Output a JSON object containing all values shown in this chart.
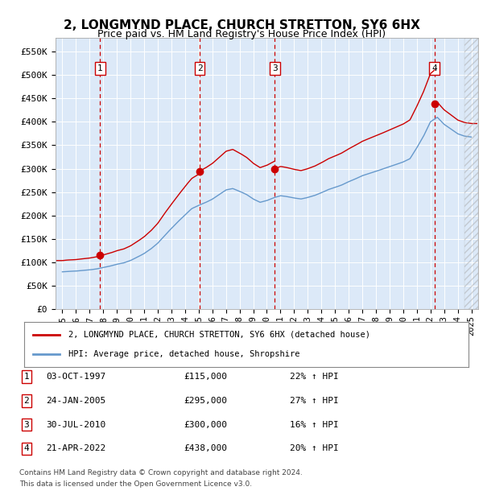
{
  "title": "2, LONGMYND PLACE, CHURCH STRETTON, SY6 6HX",
  "subtitle": "Price paid vs. HM Land Registry's House Price Index (HPI)",
  "legend_label_red": "2, LONGMYND PLACE, CHURCH STRETTON, SY6 6HX (detached house)",
  "legend_label_blue": "HPI: Average price, detached house, Shropshire",
  "footer1": "Contains HM Land Registry data © Crown copyright and database right 2024.",
  "footer2": "This data is licensed under the Open Government Licence v3.0.",
  "sales": [
    {
      "num": 1,
      "date": "03-OCT-1997",
      "price": 115000,
      "pct": "22%",
      "x_year": 1997.75
    },
    {
      "num": 2,
      "date": "24-JAN-2005",
      "price": 295000,
      "pct": "27%",
      "x_year": 2005.07
    },
    {
      "num": 3,
      "date": "30-JUL-2010",
      "price": 300000,
      "pct": "16%",
      "x_year": 2010.58
    },
    {
      "num": 4,
      "date": "21-APR-2022",
      "price": 438000,
      "pct": "20%",
      "x_year": 2022.31
    }
  ],
  "ylim": [
    0,
    580000
  ],
  "xlim": [
    1994.5,
    2025.5
  ],
  "yticks": [
    0,
    50000,
    100000,
    150000,
    200000,
    250000,
    300000,
    350000,
    400000,
    450000,
    500000,
    550000
  ],
  "ytick_labels": [
    "£0",
    "£50K",
    "£100K",
    "£150K",
    "£200K",
    "£250K",
    "£300K",
    "£350K",
    "£400K",
    "£450K",
    "£500K",
    "£550K"
  ],
  "xticks": [
    1995,
    1996,
    1997,
    1998,
    1999,
    2000,
    2001,
    2002,
    2003,
    2004,
    2005,
    2006,
    2007,
    2008,
    2009,
    2010,
    2011,
    2012,
    2013,
    2014,
    2015,
    2016,
    2017,
    2018,
    2019,
    2020,
    2021,
    2022,
    2023,
    2024,
    2025
  ],
  "background_color": "#dce9f8",
  "grid_color": "#ffffff",
  "red_color": "#cc0000",
  "blue_color": "#6699cc",
  "hpi_anchors_x": [
    1995,
    1995.5,
    1996,
    1996.5,
    1997,
    1997.5,
    1998,
    1998.5,
    1999,
    1999.5,
    2000,
    2000.5,
    2001,
    2001.5,
    2002,
    2002.5,
    2003,
    2003.5,
    2004,
    2004.5,
    2005,
    2005.5,
    2006,
    2006.5,
    2007,
    2007.5,
    2008,
    2008.5,
    2009,
    2009.5,
    2010,
    2010.5,
    2011,
    2011.5,
    2012,
    2012.5,
    2013,
    2013.5,
    2014,
    2014.5,
    2015,
    2015.5,
    2016,
    2016.5,
    2017,
    2017.5,
    2018,
    2018.5,
    2019,
    2019.5,
    2020,
    2020.5,
    2021,
    2021.5,
    2022,
    2022.5,
    2023,
    2023.5,
    2024,
    2024.5,
    2025
  ],
  "hpi_anchors_y": [
    80000,
    81000,
    82000,
    83500,
    85000,
    87000,
    90000,
    93000,
    97000,
    100000,
    105000,
    112000,
    120000,
    130000,
    142000,
    158000,
    173000,
    188000,
    202000,
    215000,
    222000,
    228000,
    235000,
    245000,
    255000,
    258000,
    252000,
    245000,
    235000,
    228000,
    232000,
    238000,
    242000,
    240000,
    237000,
    235000,
    238000,
    242000,
    248000,
    255000,
    260000,
    265000,
    272000,
    278000,
    285000,
    290000,
    295000,
    300000,
    305000,
    310000,
    315000,
    322000,
    345000,
    370000,
    400000,
    410000,
    395000,
    385000,
    375000,
    370000,
    368000
  ]
}
